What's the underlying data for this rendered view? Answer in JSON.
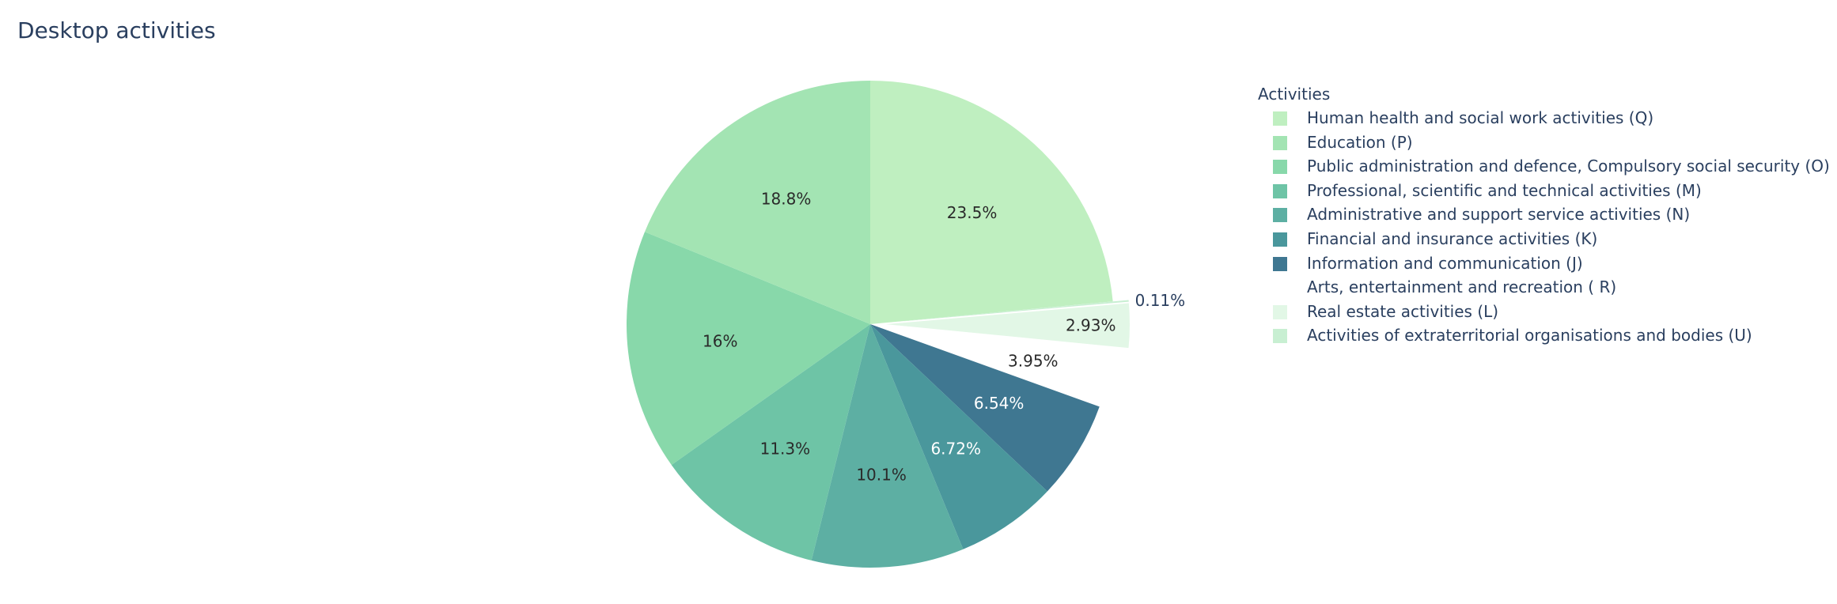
{
  "chart_data": {
    "type": "pie",
    "title": "Desktop activities",
    "legend_title": "Activities",
    "legend_position": "right",
    "direction": "clockwise",
    "start": "top",
    "slices": [
      {
        "label": "Human health and social work activities (Q)",
        "value": 23.5,
        "text": "23.5%",
        "color": "#bfefc0",
        "text_color": "#2a2a2a",
        "pulled": false
      },
      {
        "label": "Activities of extraterritorial organisations and bodies (U)",
        "value": 0.11,
        "text": "0.11%",
        "color": "#c8efd2",
        "text_color": "#2a3f5f",
        "pulled": true
      },
      {
        "label": "Real estate activities (L)",
        "value": 2.93,
        "text": "2.93%",
        "color": "#e2f7e6",
        "text_color": "#2a2a2a",
        "pulled": true
      },
      {
        "label": "Arts, entertainment and recreation ( R)",
        "value": 3.95,
        "text": "3.95%",
        "color": "#ffffff",
        "text_color": "#2a2a2a",
        "pulled": true
      },
      {
        "label": "Information and communication (J)",
        "value": 6.54,
        "text": "6.54%",
        "color": "#3f7791",
        "text_color": "#ffffff",
        "pulled": false
      },
      {
        "label": "Financial and insurance activities (K)",
        "value": 6.72,
        "text": "6.72%",
        "color": "#4a979c",
        "text_color": "#ffffff",
        "pulled": false
      },
      {
        "label": "Administrative and support service activities (N)",
        "value": 10.1,
        "text": "10.1%",
        "color": "#5dafa3",
        "text_color": "#2a2a2a",
        "pulled": false
      },
      {
        "label": "Professional, scientific and technical activities (M)",
        "value": 11.3,
        "text": "11.3%",
        "color": "#6ec4a6",
        "text_color": "#2a2a2a",
        "pulled": false
      },
      {
        "label": "Public administration and defence, Compulsory social security (O)",
        "value": 16.0,
        "text": "16%",
        "color": "#88d8aa",
        "text_color": "#2a2a2a",
        "pulled": false
      },
      {
        "label": "Education (P)",
        "value": 18.8,
        "text": "18.8%",
        "color": "#a3e4b3",
        "text_color": "#2a2a2a",
        "pulled": false
      }
    ],
    "legend_order": [
      "Human health and social work activities (Q)",
      "Education (P)",
      "Public administration and defence, Compulsory social security (O)",
      "Professional, scientific and technical activities (M)",
      "Administrative and support service activities (N)",
      "Financial and insurance activities (K)",
      "Information and communication (J)",
      "Arts, entertainment and recreation ( R)",
      "Real estate activities (L)",
      "Activities of extraterritorial organisations and bodies (U)"
    ]
  }
}
